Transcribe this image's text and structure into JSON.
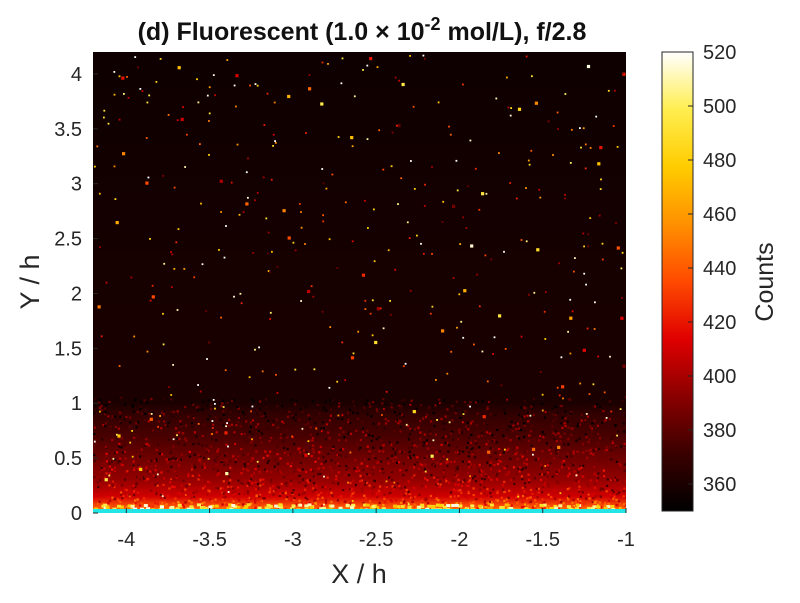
{
  "chart_data": {
    "type": "heatmap",
    "title": {
      "prefix": "(d) Fluorescent (1.0 ",
      "times": "×",
      "base": " 10",
      "exponent": "-2",
      "suffix": " mol/L), f/2.8"
    },
    "xlabel": "X / h",
    "ylabel": "Y / h",
    "xlim": [
      -4.2,
      -1.0
    ],
    "ylim": [
      0,
      4.2
    ],
    "x_ticks": [
      -4,
      -3.5,
      -3,
      -2.5,
      -2,
      -1.5,
      -1
    ],
    "x_tick_labels": [
      "-4",
      "-3.5",
      "-3",
      "-2.5",
      "-2",
      "-1.5",
      "-1"
    ],
    "y_ticks": [
      0,
      0.5,
      1,
      1.5,
      2,
      2.5,
      3,
      3.5,
      4
    ],
    "y_tick_labels": [
      "0",
      "0.5",
      "1",
      "1.5",
      "2",
      "2.5",
      "3",
      "3.5",
      "4"
    ],
    "colorbar": {
      "label": "Counts",
      "range": [
        350,
        520
      ],
      "ticks": [
        360,
        380,
        400,
        420,
        440,
        460,
        480,
        500,
        520
      ],
      "tick_labels": [
        "360",
        "380",
        "400",
        "420",
        "440",
        "460",
        "480",
        "500",
        "520"
      ],
      "colormap": "hot",
      "colors": [
        "#000000",
        "#3a0000",
        "#8a0000",
        "#e00000",
        "#ff4a00",
        "#ff9000",
        "#ffcc00",
        "#ffee50",
        "#ffffff"
      ]
    },
    "surface_line_color": "#22e5e5",
    "surface_y": 0,
    "intensity_profile": [
      {
        "y": 0.0,
        "counts": 470
      },
      {
        "y": 0.05,
        "counts": 440
      },
      {
        "y": 0.15,
        "counts": 410
      },
      {
        "y": 0.3,
        "counts": 395
      },
      {
        "y": 0.5,
        "counts": 385
      },
      {
        "y": 0.7,
        "counts": 375
      },
      {
        "y": 0.9,
        "counts": 368
      },
      {
        "y": 1.0,
        "counts": 360
      },
      {
        "y": 4.2,
        "counts": 355
      }
    ],
    "grid": false
  }
}
